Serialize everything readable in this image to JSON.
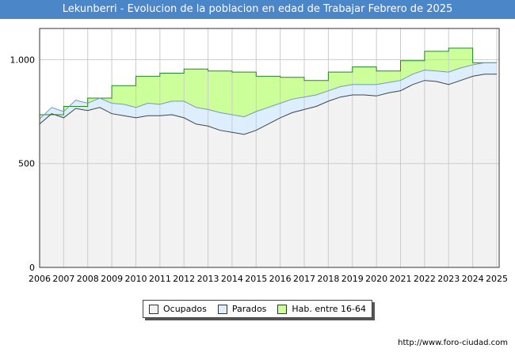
{
  "chart_data": {
    "type": "area",
    "title": "Lekunberri - Evolucion de la poblacion en edad de Trabajar Febrero de 2025",
    "xlabel": "",
    "ylabel": "",
    "ylim": [
      0,
      1150
    ],
    "y_ticks": [
      {
        "value": 0,
        "label": "0"
      },
      {
        "value": 500,
        "label": "500"
      },
      {
        "value": 1000,
        "label": "1.000"
      }
    ],
    "x_ticks": [
      "2006",
      "2007",
      "2008",
      "2009",
      "2010",
      "2011",
      "2012",
      "2013",
      "2014",
      "2015",
      "2016",
      "2017",
      "2018",
      "2019",
      "2020",
      "2021",
      "2022",
      "2023",
      "2024",
      "2025"
    ],
    "x_range": [
      2006.0,
      2025.1
    ],
    "grid": true,
    "legend_position": "bottom",
    "series": [
      {
        "name": "Hab. entre 16-64",
        "color": "#ccff99",
        "x": [
          2006.0,
          2007.0,
          2008.0,
          2009.0,
          2010.0,
          2011.0,
          2012.0,
          2013.0,
          2014.0,
          2015.0,
          2016.0,
          2017.0,
          2018.0,
          2019.0,
          2020.0,
          2021.0,
          2022.0,
          2023.0,
          2024.0
        ],
        "values": [
          735,
          775,
          815,
          875,
          920,
          935,
          955,
          945,
          940,
          920,
          915,
          900,
          940,
          965,
          945,
          995,
          1040,
          1055,
          985
        ]
      },
      {
        "name": "Parados",
        "color": "#ddeeff",
        "x": [
          2006.0,
          2006.5,
          2007.0,
          2007.5,
          2008.0,
          2008.5,
          2009.0,
          2009.5,
          2010.0,
          2010.5,
          2011.0,
          2011.5,
          2012.0,
          2012.5,
          2013.0,
          2013.5,
          2014.0,
          2014.5,
          2015.0,
          2015.5,
          2016.0,
          2016.5,
          2017.0,
          2017.5,
          2018.0,
          2018.5,
          2019.0,
          2019.5,
          2020.0,
          2020.5,
          2021.0,
          2021.5,
          2022.0,
          2022.5,
          2023.0,
          2023.5,
          2024.0,
          2024.5,
          2025.0
        ],
        "values": [
          715,
          770,
          750,
          805,
          790,
          815,
          790,
          785,
          770,
          790,
          785,
          800,
          800,
          770,
          760,
          745,
          735,
          725,
          750,
          770,
          790,
          810,
          820,
          830,
          850,
          870,
          880,
          880,
          880,
          890,
          900,
          930,
          950,
          945,
          940,
          960,
          975,
          985,
          985
        ]
      },
      {
        "name": "Ocupados",
        "color": "#f2f2f2",
        "x": [
          2006.0,
          2006.5,
          2007.0,
          2007.5,
          2008.0,
          2008.5,
          2009.0,
          2009.5,
          2010.0,
          2010.5,
          2011.0,
          2011.5,
          2012.0,
          2012.5,
          2013.0,
          2013.5,
          2014.0,
          2014.5,
          2015.0,
          2015.5,
          2016.0,
          2016.5,
          2017.0,
          2017.5,
          2018.0,
          2018.5,
          2019.0,
          2019.5,
          2020.0,
          2020.5,
          2021.0,
          2021.5,
          2022.0,
          2022.5,
          2023.0,
          2023.5,
          2024.0,
          2024.5,
          2025.0
        ],
        "values": [
          690,
          740,
          720,
          765,
          755,
          770,
          740,
          730,
          720,
          730,
          730,
          735,
          720,
          690,
          680,
          660,
          650,
          640,
          660,
          690,
          720,
          745,
          760,
          775,
          800,
          820,
          830,
          830,
          825,
          840,
          850,
          880,
          900,
          895,
          880,
          900,
          920,
          930,
          930
        ]
      }
    ]
  },
  "legend": {
    "items": [
      {
        "label": "Ocupados",
        "color": "#f2f2f2"
      },
      {
        "label": "Parados",
        "color": "#ddeeff"
      },
      {
        "label": "Hab. entre 16-64",
        "color": "#ccff99"
      }
    ]
  },
  "footer": {
    "source": "http://www.foro-ciudad.com"
  }
}
